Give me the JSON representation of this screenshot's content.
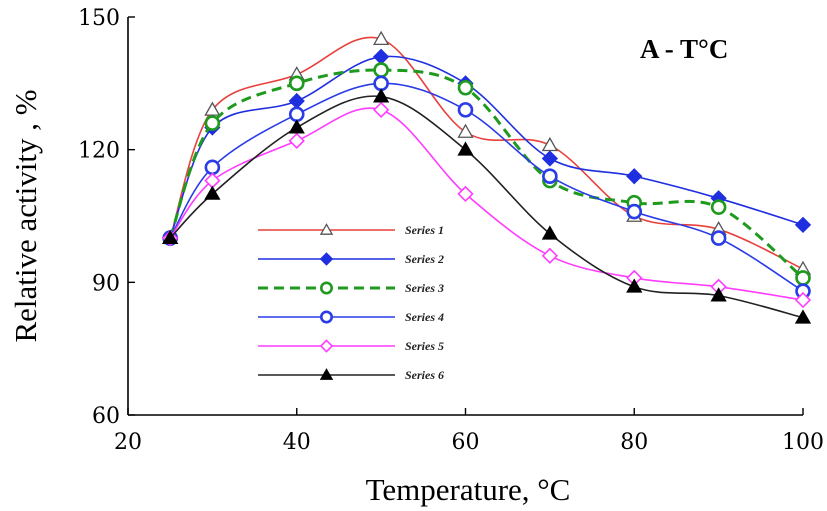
{
  "chart_data": {
    "type": "line",
    "title": "",
    "annotation": "A - T°C",
    "xlabel": "Temperature, °C",
    "ylabel": "Relative activity , %",
    "xlim": [
      20,
      100
    ],
    "ylim": [
      60,
      150
    ],
    "xticks": [
      20,
      40,
      60,
      80,
      100
    ],
    "yticks": [
      60,
      90,
      120,
      150
    ],
    "grid": false,
    "legend_position": "center-left",
    "x": [
      25,
      30,
      40,
      50,
      60,
      70,
      80,
      90,
      100
    ],
    "series": [
      {
        "name": "Series 1",
        "color": "#e8413c",
        "marker": "open-triangle",
        "dash": "solid",
        "values": [
          100,
          129,
          137,
          145,
          124,
          121,
          105,
          102,
          93
        ]
      },
      {
        "name": "Series 2",
        "color": "#1f2fe0",
        "marker": "filled-diamond",
        "dash": "solid",
        "values": [
          100,
          125,
          131,
          141,
          135,
          118,
          114,
          109,
          103
        ]
      },
      {
        "name": "Series 3",
        "color": "#1e9a1e",
        "marker": "open-circle",
        "dash": "dashed",
        "values": [
          100,
          126,
          135,
          138,
          134,
          113,
          108,
          107,
          91
        ]
      },
      {
        "name": "Series 4",
        "color": "#2a3ce8",
        "marker": "open-circle",
        "dash": "solid",
        "values": [
          100,
          116,
          128,
          135,
          129,
          114,
          106,
          100,
          88
        ]
      },
      {
        "name": "Series 5",
        "color": "#ff3cff",
        "marker": "open-diamond",
        "dash": "solid",
        "values": [
          100,
          113,
          122,
          129,
          110,
          96,
          91,
          89,
          86
        ]
      },
      {
        "name": "Series 6",
        "color": "#222222",
        "marker": "filled-triangle",
        "dash": "solid",
        "values": [
          100,
          110,
          125,
          132,
          120,
          101,
          89,
          87,
          82
        ]
      }
    ]
  }
}
